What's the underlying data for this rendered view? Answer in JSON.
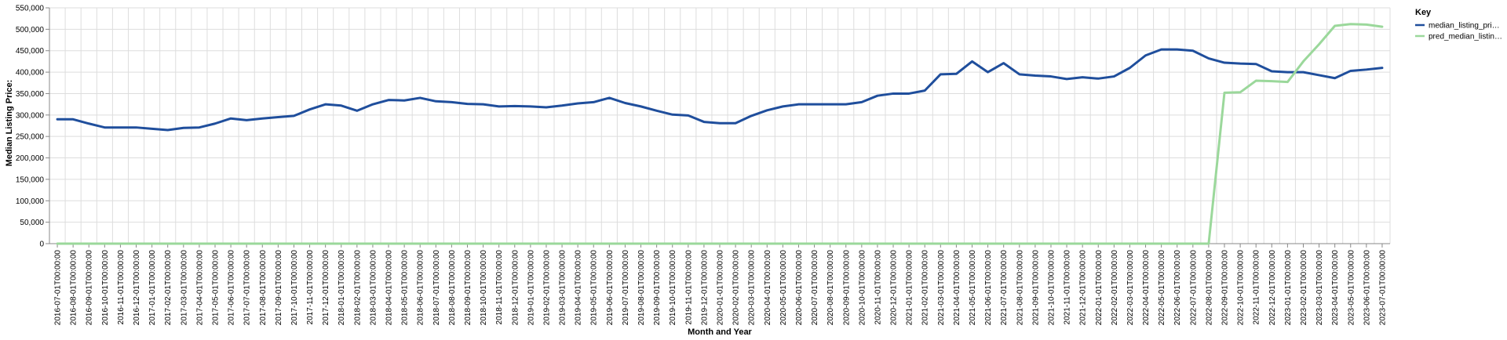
{
  "chart_data": {
    "type": "line",
    "title": "",
    "xlabel": "Month and Year",
    "ylabel": "Median Listing Price:",
    "ylim": [
      0,
      550000
    ],
    "y_ticks": [
      "0",
      "50,000",
      "100,000",
      "150,000",
      "200,000",
      "250,000",
      "300,000",
      "350,000",
      "400,000",
      "450,000",
      "500,000",
      "550,000"
    ],
    "grid": true,
    "legend": {
      "title": "Key",
      "position": "top-right"
    },
    "x": [
      "2016-07-01T00:00:00",
      "2016-08-01T00:00:00",
      "2016-09-01T00:00:00",
      "2016-10-01T00:00:00",
      "2016-11-01T00:00:00",
      "2016-12-01T00:00:00",
      "2017-01-01T00:00:00",
      "2017-02-01T00:00:00",
      "2017-03-01T00:00:00",
      "2017-04-01T00:00:00",
      "2017-05-01T00:00:00",
      "2017-06-01T00:00:00",
      "2017-07-01T00:00:00",
      "2017-08-01T00:00:00",
      "2017-09-01T00:00:00",
      "2017-10-01T00:00:00",
      "2017-11-01T00:00:00",
      "2017-12-01T00:00:00",
      "2018-01-01T00:00:00",
      "2018-02-01T00:00:00",
      "2018-03-01T00:00:00",
      "2018-04-01T00:00:00",
      "2018-05-01T00:00:00",
      "2018-06-01T00:00:00",
      "2018-07-01T00:00:00",
      "2018-08-01T00:00:00",
      "2018-09-01T00:00:00",
      "2018-10-01T00:00:00",
      "2018-11-01T00:00:00",
      "2018-12-01T00:00:00",
      "2019-01-01T00:00:00",
      "2019-02-01T00:00:00",
      "2019-03-01T00:00:00",
      "2019-04-01T00:00:00",
      "2019-05-01T00:00:00",
      "2019-06-01T00:00:00",
      "2019-07-01T00:00:00",
      "2019-08-01T00:00:00",
      "2019-09-01T00:00:00",
      "2019-10-01T00:00:00",
      "2019-11-01T00:00:00",
      "2019-12-01T00:00:00",
      "2020-01-01T00:00:00",
      "2020-02-01T00:00:00",
      "2020-03-01T00:00:00",
      "2020-04-01T00:00:00",
      "2020-05-01T00:00:00",
      "2020-06-01T00:00:00",
      "2020-07-01T00:00:00",
      "2020-08-01T00:00:00",
      "2020-09-01T00:00:00",
      "2020-10-01T00:00:00",
      "2020-11-01T00:00:00",
      "2020-12-01T00:00:00",
      "2021-01-01T00:00:00",
      "2021-02-01T00:00:00",
      "2021-03-01T00:00:00",
      "2021-04-01T00:00:00",
      "2021-05-01T00:00:00",
      "2021-06-01T00:00:00",
      "2021-07-01T00:00:00",
      "2021-08-01T00:00:00",
      "2021-09-01T00:00:00",
      "2021-10-01T00:00:00",
      "2021-11-01T00:00:00",
      "2021-12-01T00:00:00",
      "2022-01-01T00:00:00",
      "2022-02-01T00:00:00",
      "2022-03-01T00:00:00",
      "2022-04-01T00:00:00",
      "2022-05-01T00:00:00",
      "2022-06-01T00:00:00",
      "2022-07-01T00:00:00",
      "2022-08-01T00:00:00",
      "2022-09-01T00:00:00",
      "2022-10-01T00:00:00",
      "2022-11-01T00:00:00",
      "2022-12-01T00:00:00",
      "2023-01-01T00:00:00",
      "2023-02-01T00:00:00",
      "2023-03-01T00:00:00",
      "2023-04-01T00:00:00",
      "2023-05-01T00:00:00",
      "2023-06-01T00:00:00",
      "2023-07-01T00:00:00"
    ],
    "series": [
      {
        "name": "median_listing_pri…",
        "color": "#1f4e9c",
        "values": [
          290000,
          290000,
          280000,
          271000,
          271000,
          271000,
          268000,
          265000,
          270000,
          271000,
          280000,
          292000,
          288000,
          292000,
          295000,
          298000,
          313000,
          325000,
          322000,
          310000,
          325000,
          335000,
          334000,
          340000,
          332000,
          330000,
          326000,
          325000,
          320000,
          321000,
          320000,
          318000,
          322000,
          327000,
          330000,
          340000,
          328000,
          320000,
          310000,
          301000,
          299000,
          284000,
          281000,
          281000,
          298000,
          311000,
          320000,
          325000,
          325000,
          325000,
          325000,
          330000,
          345000,
          350000,
          350000,
          357000,
          395000,
          396000,
          425000,
          400000,
          421000,
          395000,
          392000,
          390000,
          384000,
          388000,
          385000,
          390000,
          410000,
          439000,
          453000,
          453000,
          450000,
          432000,
          422000,
          420000,
          419000,
          402000,
          400000,
          400000,
          393000,
          386000,
          403000,
          406000,
          410000
        ]
      },
      {
        "name": "pred_median_listin…",
        "color": "#9bd89b",
        "values": [
          0,
          0,
          0,
          0,
          0,
          0,
          0,
          0,
          0,
          0,
          0,
          0,
          0,
          0,
          0,
          0,
          0,
          0,
          0,
          0,
          0,
          0,
          0,
          0,
          0,
          0,
          0,
          0,
          0,
          0,
          0,
          0,
          0,
          0,
          0,
          0,
          0,
          0,
          0,
          0,
          0,
          0,
          0,
          0,
          0,
          0,
          0,
          0,
          0,
          0,
          0,
          0,
          0,
          0,
          0,
          0,
          0,
          0,
          0,
          0,
          0,
          0,
          0,
          0,
          0,
          0,
          0,
          0,
          0,
          0,
          0,
          0,
          0,
          0,
          352000,
          353000,
          380000,
          379000,
          377000,
          425000,
          465000,
          508000,
          512000,
          511000,
          506000
        ]
      }
    ]
  }
}
